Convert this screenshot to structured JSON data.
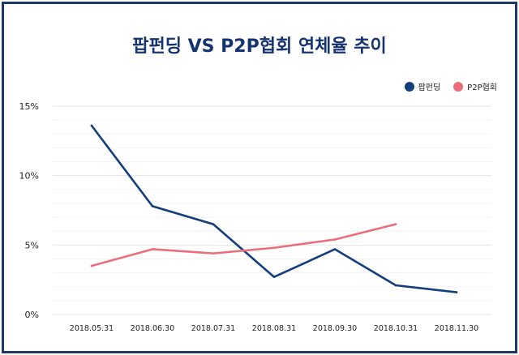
{
  "chart_data": {
    "type": "line",
    "title": "팝펀딩 VS P2P협회 연체율 추이",
    "categories": [
      "2018.05.31",
      "2018.06.30",
      "2018.07.31",
      "2018.08.31",
      "2018.09.30",
      "2018.10.31",
      "2018.11.30"
    ],
    "series": [
      {
        "name": "팝펀딩",
        "color": "#133e7c",
        "values": [
          13.6,
          7.8,
          6.5,
          2.7,
          4.7,
          2.1,
          1.6
        ]
      },
      {
        "name": "P2P협회",
        "color": "#ec6d7c",
        "values": [
          3.5,
          4.7,
          4.4,
          4.8,
          5.4,
          6.5,
          null
        ]
      }
    ],
    "yticks": [
      "0%",
      "5%",
      "10%",
      "15%"
    ],
    "ytick_values": [
      0,
      5,
      10,
      15
    ],
    "ylim": [
      0,
      15
    ],
    "xlabel": "",
    "ylabel": "",
    "legend_position": "top-right",
    "grid": true
  }
}
